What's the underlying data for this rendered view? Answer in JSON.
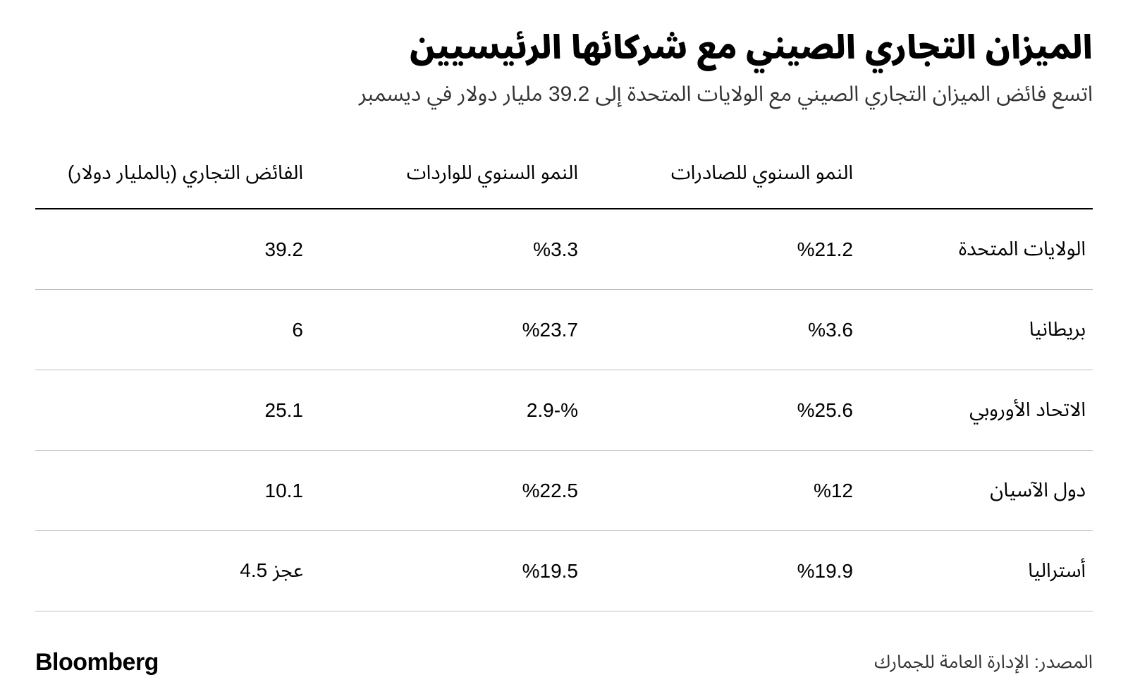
{
  "header": {
    "title": "الميزان التجاري الصيني مع شركائها الرئيسيين",
    "subtitle": "اتسع فائض الميزان التجاري الصيني مع الولايات المتحدة إلى 39.2 مليار دولار في ديسمبر"
  },
  "table": {
    "type": "table",
    "columns": [
      "",
      "النمو السنوي للصادرات",
      "النمو السنوي للواردات",
      "الفائض التجاري (بالمليار دولار)"
    ],
    "rows": [
      {
        "partner": "الولايات المتحدة",
        "export_growth": "%21.2",
        "import_growth": "%3.3",
        "surplus": "39.2"
      },
      {
        "partner": "بريطانيا",
        "export_growth": "%3.6",
        "import_growth": "%23.7",
        "surplus": "6"
      },
      {
        "partner": "الاتحاد الأوروبي",
        "export_growth": "%25.6",
        "import_growth": "%-2.9",
        "surplus": "25.1"
      },
      {
        "partner": "دول الآسيان",
        "export_growth": "%12",
        "import_growth": "%22.5",
        "surplus": "10.1"
      },
      {
        "partner": "أستراليا",
        "export_growth": "%19.9",
        "import_growth": "%19.5",
        "surplus": "عجز 4.5"
      }
    ],
    "header_border_color": "#000000",
    "row_border_color": "#bfbfbf",
    "header_fontsize": 28,
    "cell_fontsize": 28,
    "background_color": "#ffffff",
    "text_color": "#000000"
  },
  "footer": {
    "source": "المصدر: الإدارة العامة للجمارك",
    "brand": "Bloomberg"
  }
}
